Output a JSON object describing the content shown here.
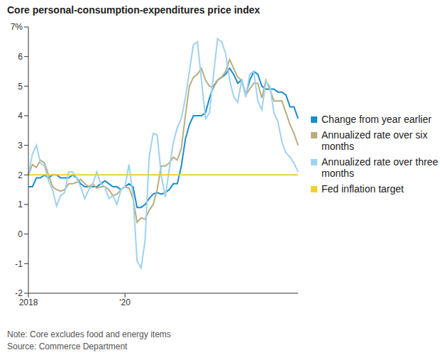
{
  "chart_data": {
    "type": "line",
    "title": "Core personal-consumption-expenditures price index",
    "notes": [
      "Note: Core excludes food and energy items",
      "Source: Commerce Department"
    ],
    "categories": [
      "2018",
      null,
      null,
      null,
      null,
      null,
      null,
      null,
      null,
      null,
      null,
      null,
      null,
      null,
      null,
      null,
      null,
      null,
      null,
      null,
      null,
      null,
      null,
      null,
      "'20",
      null,
      null,
      null,
      null,
      null,
      null,
      null,
      null,
      null,
      null,
      null,
      null,
      null,
      null,
      null,
      null,
      null,
      null,
      null,
      null,
      null,
      null,
      null,
      null,
      null,
      null,
      null,
      null,
      null,
      null,
      null,
      null,
      null,
      null,
      null,
      null,
      null,
      null,
      null,
      null,
      null,
      null,
      null
    ],
    "series": [
      {
        "name": "Change from year earlier",
        "color": "#1a8ccf",
        "values": [
          1.6,
          1.6,
          1.9,
          1.9,
          2.0,
          1.9,
          2.0,
          2.0,
          1.9,
          1.9,
          1.9,
          2.0,
          1.9,
          1.7,
          1.6,
          1.6,
          1.6,
          1.6,
          1.7,
          1.8,
          1.7,
          1.6,
          1.6,
          1.5,
          1.6,
          1.7,
          1.6,
          0.9,
          0.9,
          1.0,
          1.2,
          1.35,
          1.4,
          1.35,
          1.4,
          1.5,
          1.7,
          1.7,
          2.3,
          3.2,
          3.7,
          4.0,
          4.0,
          4.0,
          4.1,
          4.6,
          5.0,
          5.2,
          5.3,
          5.4,
          5.6,
          5.4,
          5.1,
          5.2,
          4.7,
          5.2,
          5.5,
          5.4,
          5.0,
          4.9,
          4.9,
          4.9,
          4.8,
          4.8,
          4.7,
          4.3,
          4.3,
          3.9
        ]
      },
      {
        "name": "Annualized rate over six months",
        "color": "#b8ad7f",
        "values": [
          2.0,
          2.35,
          2.25,
          2.5,
          2.4,
          2.0,
          1.6,
          1.5,
          1.45,
          1.5,
          1.7,
          1.7,
          1.75,
          1.85,
          1.7,
          1.6,
          1.7,
          1.55,
          1.6,
          1.6,
          1.5,
          1.3,
          1.35,
          1.5,
          1.6,
          1.55,
          1.2,
          0.4,
          0.55,
          0.5,
          0.8,
          1.0,
          1.5,
          2.3,
          2.3,
          2.4,
          2.6,
          2.5,
          2.9,
          4.0,
          5.0,
          5.3,
          5.4,
          5.6,
          5.2,
          5.0,
          4.95,
          5.2,
          5.3,
          5.5,
          5.9,
          5.6,
          5.3,
          5.2,
          4.7,
          4.9,
          5.1,
          5.1,
          4.6,
          5.2,
          4.9,
          4.5,
          4.5,
          4.5,
          4.1,
          3.7,
          3.4,
          3.0
        ]
      },
      {
        "name": "Annualized rate over three months",
        "color": "#9fd2ee",
        "values": [
          2.0,
          2.7,
          3.0,
          2.4,
          2.3,
          1.8,
          1.5,
          0.95,
          1.3,
          1.4,
          2.1,
          2.1,
          1.9,
          1.6,
          1.2,
          1.5,
          1.7,
          2.1,
          1.7,
          1.6,
          1.2,
          1.3,
          1.0,
          1.5,
          1.6,
          2.35,
          1.3,
          -0.9,
          -1.15,
          -0.2,
          2.6,
          3.4,
          3.35,
          2.0,
          1.25,
          2.2,
          3.1,
          3.6,
          3.9,
          4.6,
          5.5,
          6.4,
          6.5,
          5.2,
          3.9,
          4.1,
          5.4,
          6.6,
          6.5,
          6.1,
          5.2,
          4.65,
          4.45,
          5.2,
          4.65,
          5.4,
          5.5,
          4.5,
          4.2,
          5.15,
          5.0,
          4.1,
          3.8,
          3.1,
          2.75,
          2.6,
          2.4,
          2.1
        ]
      },
      {
        "name": "Fed inflation target",
        "color": "#f5cf2e",
        "values": [
          2,
          2,
          2,
          2,
          2,
          2,
          2,
          2,
          2,
          2,
          2,
          2,
          2,
          2,
          2,
          2,
          2,
          2,
          2,
          2,
          2,
          2,
          2,
          2,
          2,
          2,
          2,
          2,
          2,
          2,
          2,
          2,
          2,
          2,
          2,
          2,
          2,
          2,
          2,
          2,
          2,
          2,
          2,
          2,
          2,
          2,
          2,
          2,
          2,
          2,
          2,
          2,
          2,
          2,
          2,
          2,
          2,
          2,
          2,
          2,
          2,
          2,
          2,
          2,
          2,
          2,
          2,
          2
        ]
      }
    ],
    "ylim": [
      -2,
      7
    ],
    "yticks": [
      -2,
      -1,
      0,
      1,
      2,
      3,
      4,
      5,
      6,
      {
        "value": 7,
        "label": "7%"
      }
    ],
    "grid": false,
    "legend": "right"
  }
}
